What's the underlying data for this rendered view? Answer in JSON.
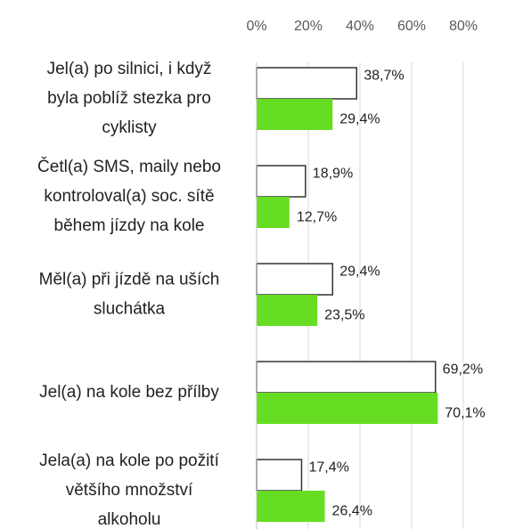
{
  "chart_data": {
    "type": "hbar",
    "categories": [
      "Jel(a) po silnici, i když\nbyla poblíž stezka pro\ncyklisty",
      "Četl(a) SMS, maily nebo\nkontroloval(a) soc. sítě\nběhem jízdy na kole",
      "Měl(a) při jízdě na uších\nsluchátka",
      "Jel(a) na kole bez přílby",
      "Jela(a) na kole po požití\nvětšího množství\nalkoholu"
    ],
    "series": [
      {
        "color": "#ffffff",
        "values": [
          38.7,
          18.9,
          29.4,
          69.2,
          17.4
        ],
        "value_labels": [
          "38,7%",
          "18,9%",
          "29,4%",
          "69,2%",
          "17,4%"
        ]
      },
      {
        "color": "#66dd22",
        "values": [
          29.4,
          12.7,
          23.5,
          70.1,
          26.4
        ],
        "value_labels": [
          "29,4%",
          "12,7%",
          "23,5%",
          "70,1%",
          "26,4%"
        ]
      }
    ],
    "xlim": [
      0,
      80
    ],
    "xticks": [
      {
        "value": 0,
        "label": "0%"
      },
      {
        "value": 20,
        "label": "20%"
      },
      {
        "value": 40,
        "label": "40%"
      },
      {
        "value": 60,
        "label": "60%"
      },
      {
        "value": 80,
        "label": "80%"
      }
    ],
    "grid": true
  }
}
